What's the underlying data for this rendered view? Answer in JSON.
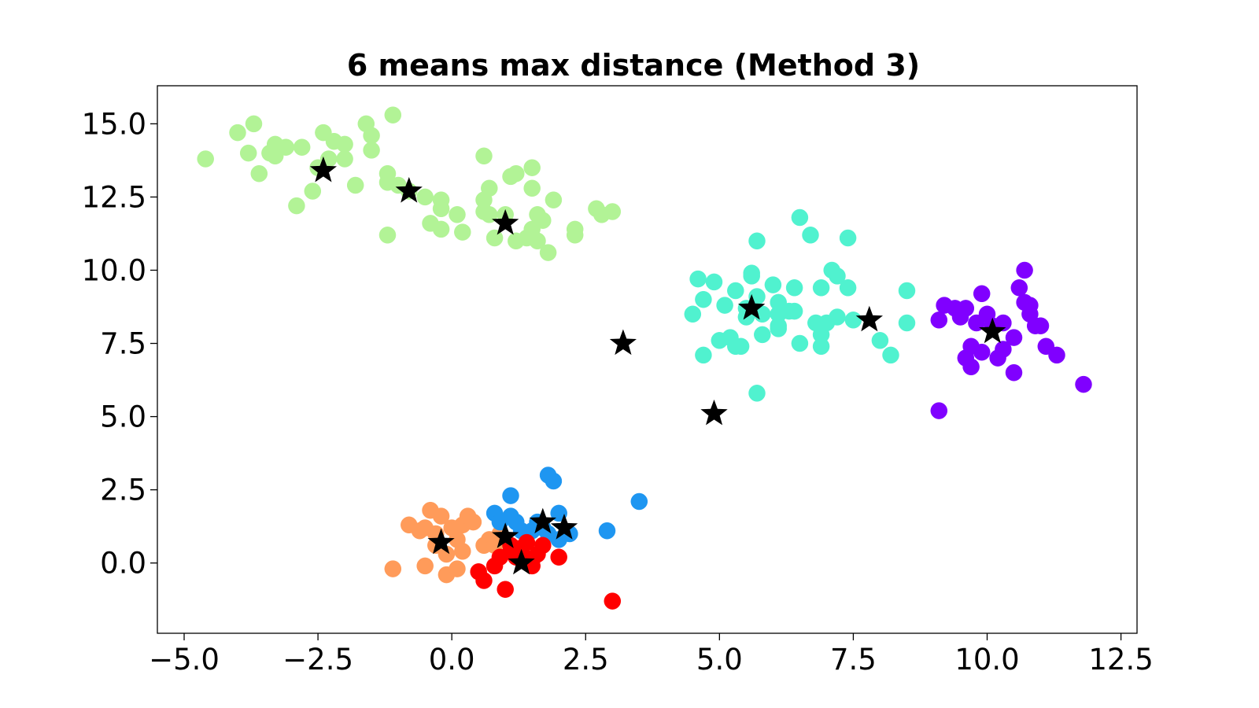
{
  "chart_data": {
    "type": "scatter",
    "title": "6 means max distance (Method 3)",
    "xlabel": "",
    "ylabel": "",
    "xlim": [
      -5.5,
      12.8
    ],
    "ylim": [
      -2.4,
      16.3
    ],
    "grid": false,
    "x_ticks": [
      {
        "value": -5.0,
        "label": "−5.0"
      },
      {
        "value": -2.5,
        "label": "−2.5"
      },
      {
        "value": 0.0,
        "label": "0.0"
      },
      {
        "value": 2.5,
        "label": "2.5"
      },
      {
        "value": 5.0,
        "label": "5.0"
      },
      {
        "value": 7.5,
        "label": "7.5"
      },
      {
        "value": 10.0,
        "label": "10.0"
      },
      {
        "value": 12.5,
        "label": "12.5"
      }
    ],
    "y_ticks": [
      {
        "value": 0.0,
        "label": "0.0"
      },
      {
        "value": 2.5,
        "label": "2.5"
      },
      {
        "value": 5.0,
        "label": "5.0"
      },
      {
        "value": 7.5,
        "label": "7.5"
      },
      {
        "value": 10.0,
        "label": "10.0"
      },
      {
        "value": 12.5,
        "label": "12.5"
      },
      {
        "value": 15.0,
        "label": "15.0"
      }
    ],
    "series": [
      {
        "color": "#b2f396",
        "points": [
          [
            -4.6,
            13.8
          ],
          [
            -4.0,
            14.7
          ],
          [
            -3.7,
            15.0
          ],
          [
            -3.8,
            14.0
          ],
          [
            -3.6,
            13.3
          ],
          [
            -3.4,
            14.0
          ],
          [
            -3.3,
            14.3
          ],
          [
            -3.1,
            14.2
          ],
          [
            -3.3,
            13.9
          ],
          [
            -2.8,
            14.2
          ],
          [
            -2.9,
            12.2
          ],
          [
            -2.6,
            12.7
          ],
          [
            -2.5,
            13.5
          ],
          [
            -2.4,
            14.7
          ],
          [
            -2.3,
            13.8
          ],
          [
            -2.2,
            14.4
          ],
          [
            -2.0,
            13.8
          ],
          [
            -2.0,
            14.3
          ],
          [
            -1.8,
            12.9
          ],
          [
            -1.6,
            15.0
          ],
          [
            -1.5,
            14.1
          ],
          [
            -1.5,
            14.6
          ],
          [
            -1.2,
            13.0
          ],
          [
            -1.2,
            13.3
          ],
          [
            -1.1,
            15.3
          ],
          [
            -1.0,
            12.9
          ],
          [
            -1.2,
            11.2
          ],
          [
            -0.8,
            12.7
          ],
          [
            -0.5,
            12.5
          ],
          [
            -0.4,
            11.6
          ],
          [
            -0.2,
            12.4
          ],
          [
            -0.2,
            12.1
          ],
          [
            -0.2,
            11.4
          ],
          [
            0.1,
            11.9
          ],
          [
            0.2,
            11.3
          ],
          [
            0.6,
            12.0
          ],
          [
            0.6,
            12.4
          ],
          [
            0.7,
            11.9
          ],
          [
            0.7,
            12.8
          ],
          [
            0.8,
            11.1
          ],
          [
            0.6,
            13.9
          ],
          [
            1.0,
            11.9
          ],
          [
            1.1,
            13.2
          ],
          [
            1.2,
            11.0
          ],
          [
            1.2,
            13.3
          ],
          [
            1.4,
            11.1
          ],
          [
            1.5,
            11.4
          ],
          [
            1.5,
            12.8
          ],
          [
            1.6,
            11.9
          ],
          [
            1.6,
            11.0
          ],
          [
            1.5,
            13.5
          ],
          [
            1.7,
            11.7
          ],
          [
            1.8,
            10.6
          ],
          [
            1.9,
            12.4
          ],
          [
            2.3,
            11.2
          ],
          [
            2.3,
            11.4
          ],
          [
            2.7,
            12.1
          ],
          [
            2.8,
            11.9
          ],
          [
            3.0,
            12.0
          ]
        ]
      },
      {
        "color": "#50f2cf",
        "points": [
          [
            4.5,
            8.5
          ],
          [
            4.6,
            9.7
          ],
          [
            4.7,
            7.1
          ],
          [
            4.7,
            9.0
          ],
          [
            4.9,
            9.6
          ],
          [
            5.0,
            7.6
          ],
          [
            5.1,
            8.8
          ],
          [
            5.2,
            7.7
          ],
          [
            5.3,
            9.3
          ],
          [
            5.3,
            7.4
          ],
          [
            5.4,
            7.4
          ],
          [
            5.5,
            8.7
          ],
          [
            5.5,
            8.4
          ],
          [
            5.6,
            9.8
          ],
          [
            5.6,
            9.9
          ],
          [
            5.7,
            11.0
          ],
          [
            5.7,
            9.1
          ],
          [
            5.7,
            5.8
          ],
          [
            5.8,
            8.5
          ],
          [
            5.8,
            7.8
          ],
          [
            6.0,
            9.5
          ],
          [
            6.1,
            8.9
          ],
          [
            6.1,
            8.5
          ],
          [
            6.1,
            8.1
          ],
          [
            6.1,
            8.0
          ],
          [
            6.3,
            8.6
          ],
          [
            6.4,
            9.4
          ],
          [
            6.4,
            8.6
          ],
          [
            6.5,
            7.5
          ],
          [
            6.5,
            11.8
          ],
          [
            6.7,
            11.2
          ],
          [
            6.8,
            8.2
          ],
          [
            6.9,
            7.8
          ],
          [
            6.9,
            9.4
          ],
          [
            6.9,
            7.4
          ],
          [
            7.0,
            8.2
          ],
          [
            7.1,
            10.0
          ],
          [
            7.2,
            8.4
          ],
          [
            7.2,
            9.8
          ],
          [
            7.4,
            9.4
          ],
          [
            7.4,
            11.1
          ],
          [
            7.5,
            8.3
          ],
          [
            8.0,
            7.6
          ],
          [
            8.2,
            7.1
          ],
          [
            8.5,
            8.2
          ],
          [
            8.5,
            9.3
          ]
        ]
      },
      {
        "color": "#8000ff",
        "points": [
          [
            9.1,
            8.3
          ],
          [
            9.1,
            5.2
          ],
          [
            9.2,
            8.8
          ],
          [
            9.4,
            8.7
          ],
          [
            9.5,
            8.4
          ],
          [
            9.6,
            8.7
          ],
          [
            9.6,
            7.0
          ],
          [
            9.7,
            7.4
          ],
          [
            9.7,
            6.7
          ],
          [
            9.8,
            8.2
          ],
          [
            9.9,
            9.2
          ],
          [
            9.9,
            7.2
          ],
          [
            10.0,
            8.5
          ],
          [
            10.1,
            8.1
          ],
          [
            10.2,
            7.0
          ],
          [
            10.3,
            7.3
          ],
          [
            10.3,
            8.2
          ],
          [
            10.5,
            6.5
          ],
          [
            10.5,
            7.7
          ],
          [
            10.6,
            9.4
          ],
          [
            10.7,
            8.9
          ],
          [
            10.7,
            10.0
          ],
          [
            10.8,
            8.8
          ],
          [
            10.8,
            8.5
          ],
          [
            10.9,
            8.1
          ],
          [
            11.0,
            8.1
          ],
          [
            11.1,
            7.4
          ],
          [
            11.3,
            7.1
          ],
          [
            11.8,
            6.1
          ]
        ]
      },
      {
        "color": "#ff9b5a",
        "points": [
          [
            -1.1,
            -0.2
          ],
          [
            -0.8,
            1.3
          ],
          [
            -0.6,
            1.1
          ],
          [
            -0.5,
            -0.1
          ],
          [
            -0.5,
            1.2
          ],
          [
            -0.4,
            1.8
          ],
          [
            -0.3,
            0.6
          ],
          [
            -0.3,
            1.0
          ],
          [
            -0.2,
            1.6
          ],
          [
            -0.1,
            0.3
          ],
          [
            -0.1,
            -0.4
          ],
          [
            0.0,
            1.2
          ],
          [
            0.1,
            0.8
          ],
          [
            0.1,
            -0.2
          ],
          [
            0.2,
            1.3
          ],
          [
            0.2,
            0.4
          ],
          [
            0.3,
            1.6
          ],
          [
            0.4,
            1.4
          ],
          [
            0.6,
            0.6
          ],
          [
            0.7,
            0.8
          ],
          [
            0.8,
            0.6
          ],
          [
            0.9,
            1.0
          ]
        ]
      },
      {
        "color": "#1e96f1",
        "points": [
          [
            0.8,
            1.7
          ],
          [
            0.9,
            1.4
          ],
          [
            1.1,
            2.3
          ],
          [
            1.1,
            1.6
          ],
          [
            1.2,
            1.4
          ],
          [
            1.3,
            1.1
          ],
          [
            1.5,
            1.1
          ],
          [
            1.6,
            1.4
          ],
          [
            1.7,
            1.2
          ],
          [
            1.8,
            3.0
          ],
          [
            1.8,
            1.0
          ],
          [
            1.9,
            2.8
          ],
          [
            2.0,
            1.7
          ],
          [
            2.0,
            0.8
          ],
          [
            2.2,
            1.0
          ],
          [
            2.9,
            1.1
          ],
          [
            3.5,
            2.1
          ]
        ]
      },
      {
        "color": "#ff0000",
        "points": [
          [
            0.5,
            -0.3
          ],
          [
            0.6,
            -0.6
          ],
          [
            0.8,
            -0.1
          ],
          [
            0.9,
            0.2
          ],
          [
            1.0,
            -0.9
          ],
          [
            1.1,
            0.4
          ],
          [
            1.1,
            0.6
          ],
          [
            1.2,
            0.2
          ],
          [
            1.2,
            0.5
          ],
          [
            1.3,
            0.4
          ],
          [
            1.4,
            0.7
          ],
          [
            1.5,
            0.1
          ],
          [
            1.5,
            -0.1
          ],
          [
            1.6,
            0.3
          ],
          [
            1.7,
            0.6
          ],
          [
            2.0,
            0.2
          ],
          [
            3.0,
            -1.3
          ]
        ]
      }
    ],
    "centroids": [
      [
        -2.4,
        13.4
      ],
      [
        -0.8,
        12.7
      ],
      [
        1.0,
        11.6
      ],
      [
        3.2,
        7.5
      ],
      [
        4.9,
        5.1
      ],
      [
        5.6,
        8.7
      ],
      [
        7.8,
        8.3
      ],
      [
        10.1,
        7.9
      ],
      [
        -0.2,
        0.7
      ],
      [
        1.0,
        0.9
      ],
      [
        1.3,
        0.0
      ],
      [
        1.7,
        1.4
      ],
      [
        2.1,
        1.2
      ]
    ],
    "centroid_color": "#000000"
  }
}
